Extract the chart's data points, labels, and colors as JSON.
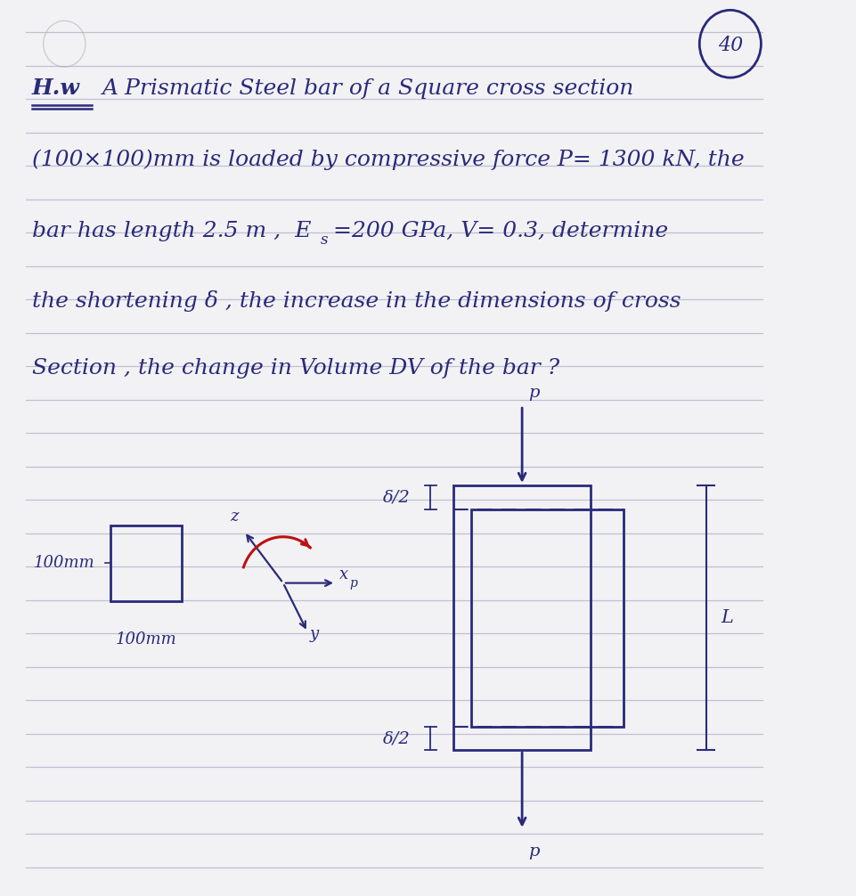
{
  "page_color": "#f2f2f5",
  "line_color": "#c0c0d0",
  "ink_color": "#2a2a7a",
  "red_color": "#bb1111",
  "page_width": 9.61,
  "page_height": 10.06,
  "num_lines": 26,
  "circle_number": "40",
  "hw_label": "H.w",
  "line1": "A Prismatic Steel bar of a Square cross section",
  "line2": "(100×100)mm is loaded by compressive force P= 1300 kN, the",
  "line3a": "bar has length 2.5 m ,  E",
  "line3b": "=200 GPa, V= 0.3, determine",
  "line4": "the shortening δ , the increase in the dimensions of cross",
  "line5": "Section , the change in Volume DV of the bar ?",
  "label_100mm_left": "100mm",
  "label_100mm_bot": "100mm",
  "label_delta_half": "δ/2",
  "label_L": "L",
  "label_p": "p",
  "label_x": "x",
  "label_y": "y",
  "label_z": "z"
}
